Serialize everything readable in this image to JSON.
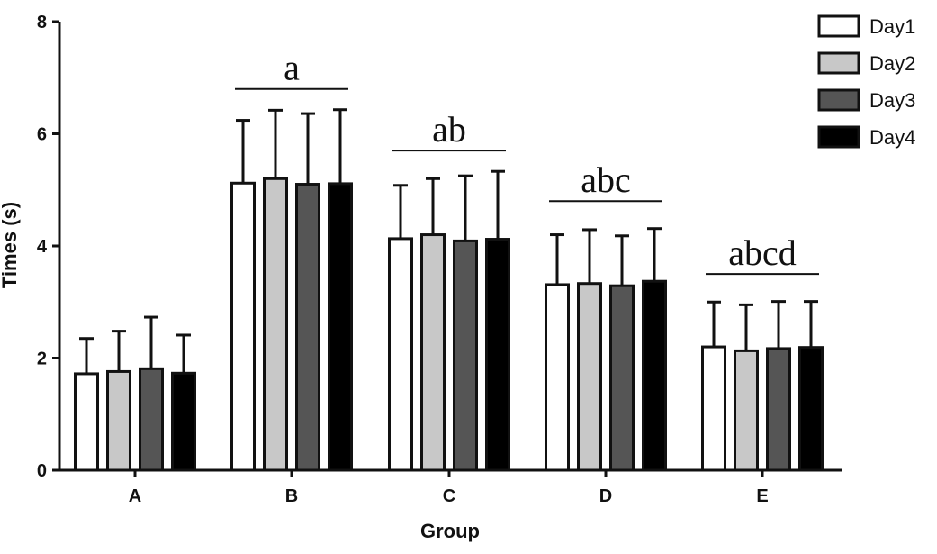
{
  "chart_data": {
    "type": "bar",
    "xlabel": "Group",
    "ylabel": "Times (s)",
    "ylim": [
      0,
      8
    ],
    "yticks": [
      0,
      2,
      4,
      6,
      8
    ],
    "grid": false,
    "legend_position": "top-right",
    "categories": [
      "A",
      "B",
      "C",
      "D",
      "E"
    ],
    "series": [
      {
        "name": "Day1",
        "color": "#ffffff",
        "values": [
          1.72,
          5.12,
          4.13,
          3.31,
          2.2
        ],
        "errors": [
          0.63,
          1.12,
          0.95,
          0.89,
          0.8
        ]
      },
      {
        "name": "Day2",
        "color": "#c8c8c8",
        "values": [
          1.76,
          5.2,
          4.2,
          3.33,
          2.13
        ],
        "errors": [
          0.72,
          1.22,
          1.0,
          0.96,
          0.82
        ]
      },
      {
        "name": "Day3",
        "color": "#555555",
        "values": [
          1.81,
          5.1,
          4.09,
          3.29,
          2.17
        ],
        "errors": [
          0.92,
          1.26,
          1.16,
          0.89,
          0.84
        ]
      },
      {
        "name": "Day4",
        "color": "#000000",
        "values": [
          1.73,
          5.11,
          4.12,
          3.37,
          2.19
        ],
        "errors": [
          0.68,
          1.32,
          1.21,
          0.94,
          0.82
        ]
      }
    ],
    "annotations": [
      {
        "category": "B",
        "text": "a",
        "y": 6.8
      },
      {
        "category": "C",
        "text": "ab",
        "y": 5.7
      },
      {
        "category": "D",
        "text": "abc",
        "y": 4.8
      },
      {
        "category": "E",
        "text": "abcd",
        "y": 3.5
      }
    ]
  }
}
